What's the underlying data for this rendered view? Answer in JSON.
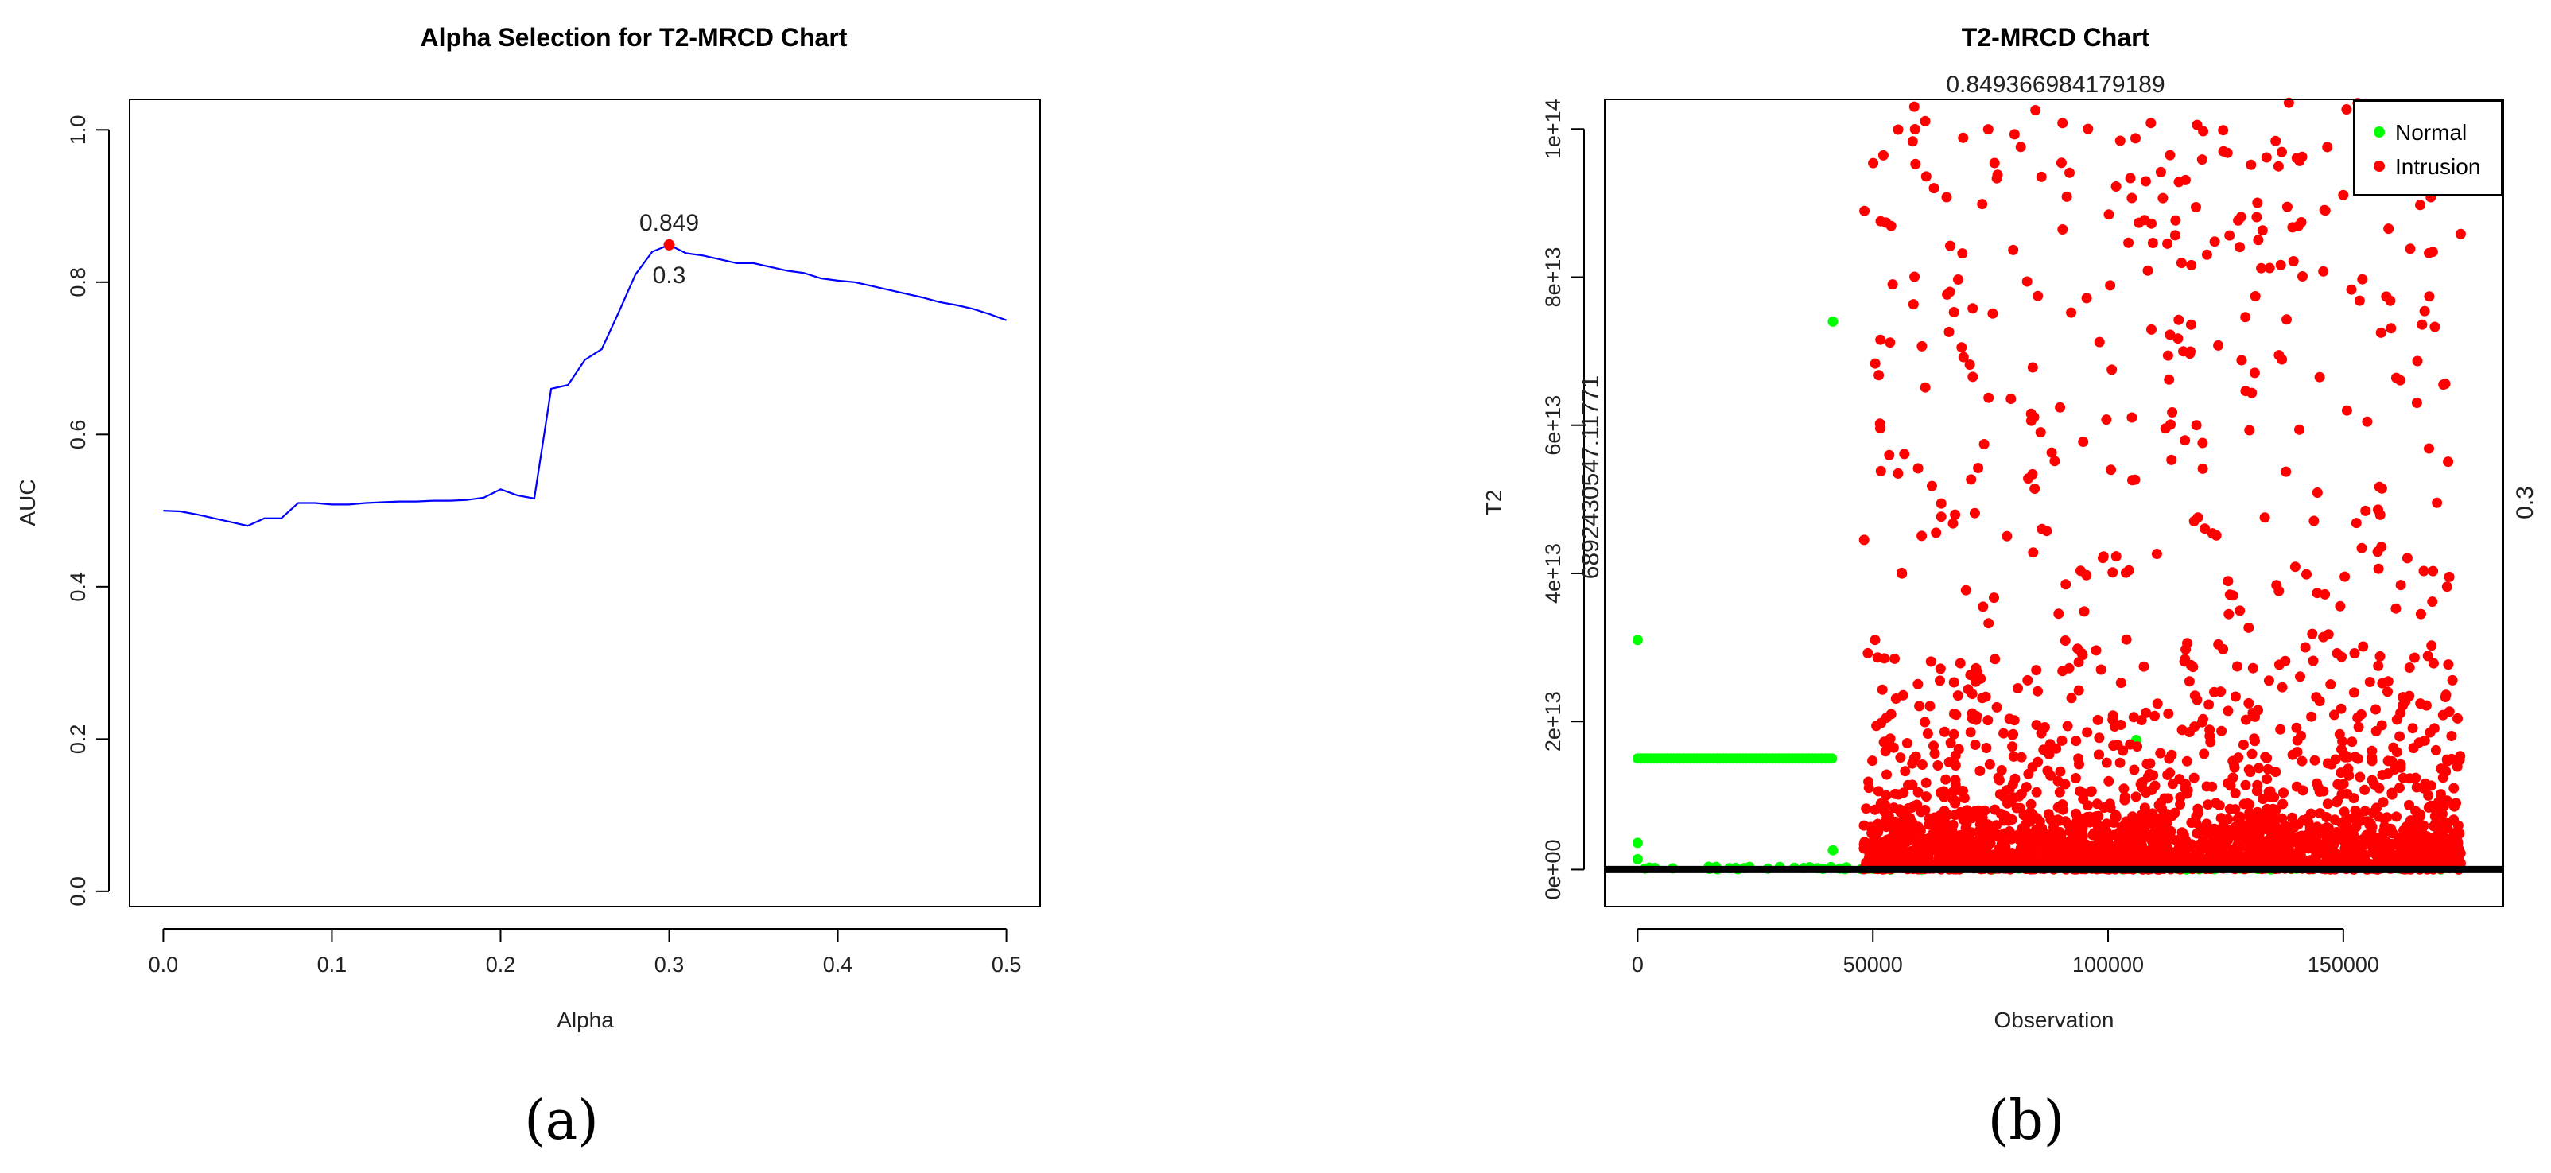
{
  "chart_data": [
    {
      "type": "line",
      "panel_label": "(a)",
      "title": "Alpha Selection for T2-MRCD Chart",
      "xlabel": "Alpha",
      "ylabel": "AUC",
      "xlim": [
        -0.02,
        0.52
      ],
      "ylim": [
        -0.02,
        1.04
      ],
      "xticks": [
        "0.0",
        "0.1",
        "0.2",
        "0.3",
        "0.4",
        "0.5"
      ],
      "yticks": [
        "0.0",
        "0.2",
        "0.4",
        "0.6",
        "0.8",
        "1.0"
      ],
      "line_color": "#0000ff",
      "highlight_color": "#ff0000",
      "highlight": {
        "x": 0.3,
        "y": 0.849,
        "value_label": "0.849",
        "alpha_label": "0.3"
      },
      "series": [
        {
          "x": [
            0.0,
            0.01,
            0.02,
            0.03,
            0.04,
            0.05,
            0.06,
            0.07,
            0.08,
            0.09,
            0.1,
            0.11,
            0.12,
            0.13,
            0.14,
            0.15,
            0.16,
            0.17,
            0.18,
            0.19,
            0.2,
            0.21,
            0.22,
            0.23,
            0.24,
            0.25,
            0.26,
            0.27,
            0.28,
            0.29,
            0.3,
            0.31,
            0.32,
            0.33,
            0.34,
            0.35,
            0.36,
            0.37,
            0.38,
            0.39,
            0.4,
            0.41,
            0.42,
            0.43,
            0.44,
            0.45,
            0.46,
            0.47,
            0.48,
            0.49,
            0.5
          ],
          "y": [
            0.5,
            0.499,
            0.495,
            0.49,
            0.485,
            0.48,
            0.49,
            0.49,
            0.51,
            0.51,
            0.508,
            0.508,
            0.51,
            0.511,
            0.512,
            0.512,
            0.513,
            0.513,
            0.514,
            0.517,
            0.528,
            0.52,
            0.516,
            0.66,
            0.665,
            0.698,
            0.712,
            0.76,
            0.81,
            0.84,
            0.849,
            0.838,
            0.835,
            0.83,
            0.825,
            0.825,
            0.82,
            0.815,
            0.812,
            0.805,
            0.802,
            0.8,
            0.795,
            0.79,
            0.785,
            0.78,
            0.774,
            0.77,
            0.765,
            0.758,
            0.75
          ]
        }
      ]
    },
    {
      "type": "scatter",
      "panel_label": "(b)",
      "title": "T2-MRCD Chart",
      "top_annotation": "0.849366984179189",
      "left_annotation": "6892430547.11771",
      "right_annotation": "0.3",
      "xlabel": "Observation",
      "ylabel": "T2",
      "xlim": [
        -7000,
        184000
      ],
      "ylim": [
        -5000000000000.0,
        104000000000000.0
      ],
      "xticks": [
        "0",
        "50000",
        "100000",
        "150000"
      ],
      "yticks": [
        "0e+00",
        "2e+13",
        "4e+13",
        "6e+13",
        "8e+13",
        "1e+14"
      ],
      "threshold": 6892430547.11771,
      "legend": {
        "position": "top-right",
        "entries": [
          {
            "label": "Normal",
            "color": "#00ff00"
          },
          {
            "label": "Intrusion",
            "color": "#ff0000"
          }
        ]
      },
      "series": [
        {
          "name": "Normal",
          "color": "#00ff00",
          "x_range": [
            0,
            175000
          ],
          "band": {
            "x_range": [
              0,
              41500
            ],
            "y": 15000000000000.0
          },
          "points": [
            [
              0,
              31000000000000.0
            ],
            [
              0,
              3600000000000.0
            ],
            [
              0,
              1400000000000.0
            ],
            [
              41500,
              74000000000000.0
            ],
            [
              41500,
              2600000000000.0
            ],
            [
              106000,
              17500000000000.0
            ]
          ]
        },
        {
          "name": "Intrusion",
          "color": "#ff0000",
          "x_range": [
            48000,
            175000
          ],
          "y_range": [
            0,
            104000000000000.0
          ]
        }
      ]
    }
  ]
}
